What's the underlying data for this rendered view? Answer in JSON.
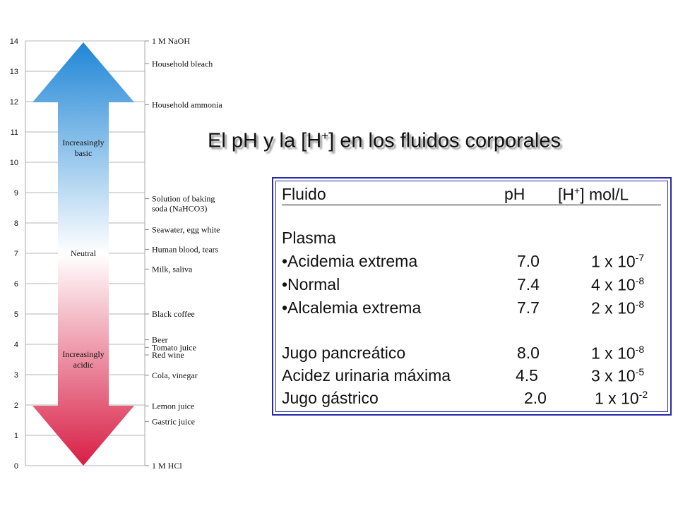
{
  "scale": {
    "ticks": [
      "0",
      "1",
      "2",
      "3",
      "4",
      "5",
      "6",
      "7",
      "8",
      "9",
      "10",
      "11",
      "12",
      "13",
      "14"
    ],
    "arrow_labels": {
      "basic": [
        "Increasingly",
        "basic"
      ],
      "neutral": "Neutral",
      "acidic": [
        "Increasingly",
        "acidic"
      ]
    },
    "substances": [
      {
        "ph": 14,
        "label": [
          "1 M  NaOH"
        ]
      },
      {
        "ph": 13.25,
        "label": [
          "Household bleach"
        ]
      },
      {
        "ph": 11.9,
        "label": [
          "Household ammonia"
        ]
      },
      {
        "ph": 8.8,
        "label": [
          "Solution of baking",
          "soda (NaHCO3)"
        ]
      },
      {
        "ph": 7.78,
        "label": [
          "Seawater, egg white"
        ]
      },
      {
        "ph": 7.13,
        "label": [
          "Human blood, tears"
        ]
      },
      {
        "ph": 6.48,
        "label": [
          "Milk, saliva"
        ]
      },
      {
        "ph": 5.0,
        "label": [
          "Black coffee"
        ]
      },
      {
        "ph": 4.15,
        "label": [
          "Beer"
        ]
      },
      {
        "ph": 3.9,
        "label": [
          "Tomato juice"
        ]
      },
      {
        "ph": 3.65,
        "label": [
          "Red wine"
        ]
      },
      {
        "ph": 2.98,
        "label": [
          "Cola, vinegar"
        ]
      },
      {
        "ph": 1.97,
        "label": [
          "Lemon juice"
        ]
      },
      {
        "ph": 1.45,
        "label": [
          "Gastric juice"
        ]
      },
      {
        "ph": 0,
        "label": [
          "1 M  HCl"
        ]
      }
    ],
    "colors": {
      "basic": "#1f86d6",
      "neutral": "#ffffff",
      "acidic": "#d81e45"
    }
  },
  "title": {
    "before": "El pH y la [H",
    "sup": "+",
    "after": "] en los fluidos corporales"
  },
  "table": {
    "header": {
      "fluid": "Fluido",
      "ph": "pH",
      "h_before": "[H",
      "h_sup": "+",
      "h_after": "] mol/L"
    },
    "section": "Plasma",
    "plasma_rows": [
      {
        "name": "•Acidemia extrema",
        "ph": "7.0",
        "h": "1 x 10",
        "exp": "-7"
      },
      {
        "name": "•Normal",
        "ph": "7.4",
        "h": "4 x 10",
        "exp": "-8"
      },
      {
        "name": "•Alcalemia extrema",
        "ph": "7.7",
        "h": "2 x 10",
        "exp": "-8"
      }
    ],
    "other_rows": [
      {
        "name": "Jugo pancreático",
        "ph": "8.0",
        "h": "1 x 10",
        "exp": "-8"
      },
      {
        "name": "Acidez urinaria máxima",
        "ph": "4.5",
        "h": "3 x 10",
        "exp": "-5"
      },
      {
        "name": "Jugo gástrico",
        "ph": "2.0",
        "h": "1 x 10",
        "exp": "-2"
      }
    ]
  }
}
